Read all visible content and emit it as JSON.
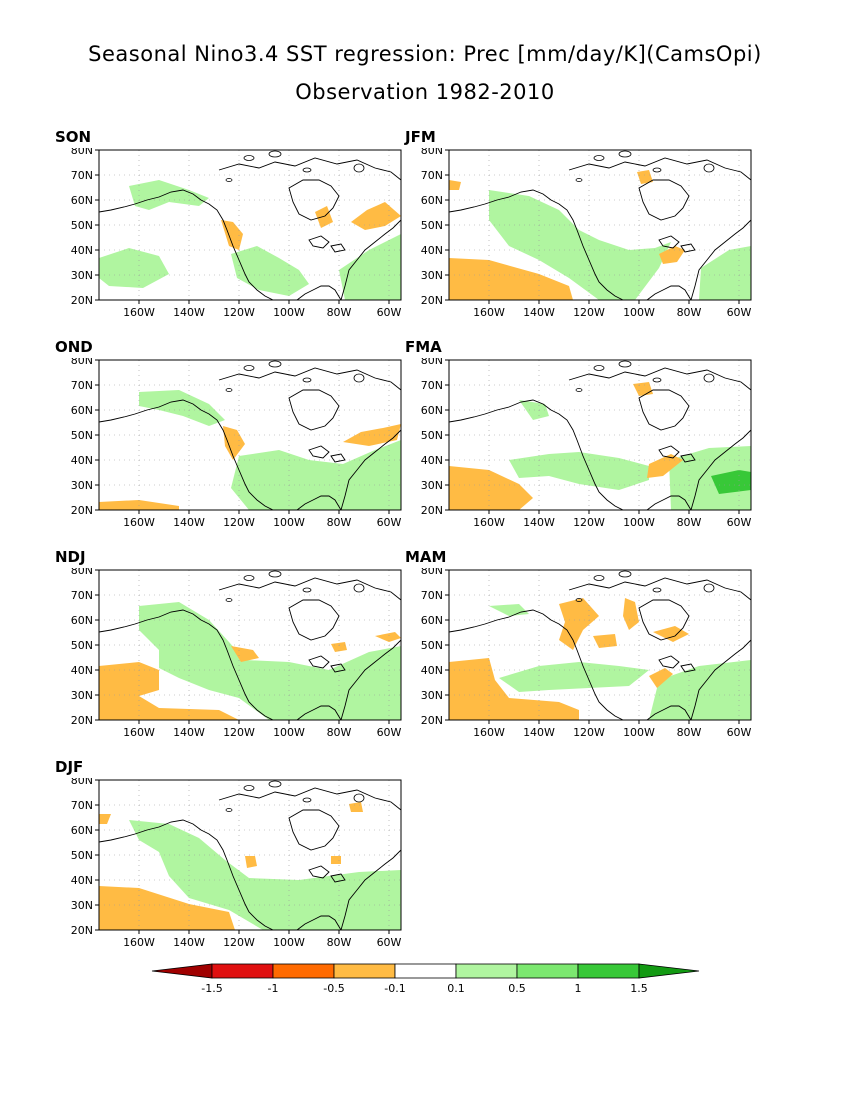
{
  "title": "Seasonal Nino3.4 SST regression: Prec [mm/day/K](CamsOpi)",
  "subtitle": "Observation 1982-2010",
  "axes": {
    "lat_labels": [
      "80N",
      "70N",
      "60N",
      "50N",
      "40N",
      "30N",
      "20N"
    ],
    "lon_labels": [
      "160W",
      "140W",
      "120W",
      "100W",
      "80W",
      "60W"
    ]
  },
  "panels": [
    {
      "season": "SON"
    },
    {
      "season": "JFM"
    },
    {
      "season": "OND"
    },
    {
      "season": "FMA"
    },
    {
      "season": "NDJ"
    },
    {
      "season": "MAM"
    },
    {
      "season": "DJF"
    }
  ],
  "colorbar": {
    "levels": [
      "-1.5",
      "-1",
      "-0.5",
      "-0.1",
      "0.1",
      "0.5",
      "1",
      "1.5"
    ],
    "colors": [
      "#a00000",
      "#e01010",
      "#ff6a00",
      "#ffbb44",
      "#ffffff",
      "#b0f5a0",
      "#7ce870",
      "#38c838",
      "#139a13"
    ]
  },
  "colors": {
    "negative_light": "#ffbb44",
    "positive_light": "#b0f5a0",
    "positive_mid": "#7ce870",
    "positive_dark": "#38c838",
    "coast": "#000000",
    "grid": "#999999"
  }
}
